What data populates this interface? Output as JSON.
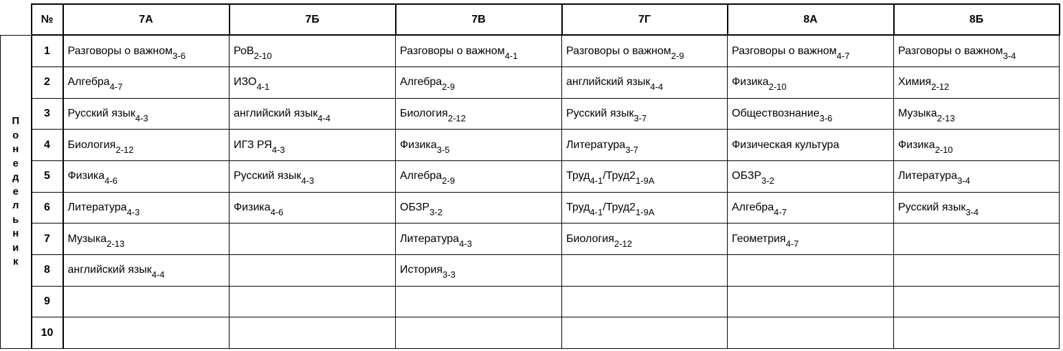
{
  "table": {
    "header": [
      "№",
      "7А",
      "7Б",
      "7В",
      "7Г",
      "8А",
      "8Б"
    ],
    "day": "Понедельник",
    "rows": [
      {
        "number": 1,
        "cells": [
          [
            {
              "text": "Разговоры о важном",
              "sub": "3-6"
            }
          ],
          [
            {
              "text": "РоВ",
              "sub": "2-10"
            }
          ],
          [
            {
              "text": "Разговоры о важном",
              "sub": "4-1"
            }
          ],
          [
            {
              "text": "Разговоры о важном",
              "sub": "2-9"
            }
          ],
          [
            {
              "text": "Разговоры о важном",
              "sub": "4-7"
            }
          ],
          [
            {
              "text": "Разговоры о важном",
              "sub": "3-4"
            }
          ]
        ]
      },
      {
        "number": 2,
        "cells": [
          [
            {
              "text": "Алгебра",
              "sub": "4-7"
            }
          ],
          [
            {
              "text": "ИЗО",
              "sub": "4-1"
            }
          ],
          [
            {
              "text": "Алгебра",
              "sub": "2-9"
            }
          ],
          [
            {
              "text": "английский язык",
              "sub": "4-4"
            }
          ],
          [
            {
              "text": "Физика",
              "sub": "2-10"
            }
          ],
          [
            {
              "text": "Химия",
              "sub": "2-12"
            }
          ]
        ]
      },
      {
        "number": 3,
        "cells": [
          [
            {
              "text": "Русский язык",
              "sub": "4-3"
            }
          ],
          [
            {
              "text": "английский язык",
              "sub": "4-4"
            }
          ],
          [
            {
              "text": "Биология",
              "sub": "2-12"
            }
          ],
          [
            {
              "text": "Русский язык",
              "sub": "3-7"
            }
          ],
          [
            {
              "text": "Обществознание",
              "sub": "3-6"
            }
          ],
          [
            {
              "text": "Музыка",
              "sub": "2-13"
            }
          ]
        ]
      },
      {
        "number": 4,
        "cells": [
          [
            {
              "text": "Биология",
              "sub": "2-12"
            }
          ],
          [
            {
              "text": "ИГЗ РЯ",
              "sub": "4-3"
            }
          ],
          [
            {
              "text": "Физика",
              "sub": "3-5"
            }
          ],
          [
            {
              "text": "Литература",
              "sub": "3-7"
            }
          ],
          [
            {
              "text": "Физическая культура"
            }
          ],
          [
            {
              "text": "Физика",
              "sub": "2-10"
            }
          ]
        ]
      },
      {
        "number": 5,
        "cells": [
          [
            {
              "text": "Физика",
              "sub": "4-6"
            }
          ],
          [
            {
              "text": "Русский язык",
              "sub": "4-3"
            }
          ],
          [
            {
              "text": "Алгебра",
              "sub": "2-9"
            }
          ],
          [
            {
              "text": "Труд",
              "sub": "4-1"
            },
            {
              "text": "/Труд2",
              "sub": "1-9А"
            }
          ],
          [
            {
              "text": "ОБЗР",
              "sub": "3-2"
            }
          ],
          [
            {
              "text": "Литература",
              "sub": "3-4"
            }
          ]
        ]
      },
      {
        "number": 6,
        "cells": [
          [
            {
              "text": "Литература",
              "sub": "4-3"
            }
          ],
          [
            {
              "text": "Физика",
              "sub": "4-6"
            }
          ],
          [
            {
              "text": "ОБЗР",
              "sub": "3-2"
            }
          ],
          [
            {
              "text": "Труд",
              "sub": "4-1"
            },
            {
              "text": "/Труд2",
              "sub": "1-9А"
            }
          ],
          [
            {
              "text": "Алгебра",
              "sub": "4-7"
            }
          ],
          [
            {
              "text": "Русский язык",
              "sub": "3-4"
            }
          ]
        ]
      },
      {
        "number": 7,
        "cells": [
          [
            {
              "text": "Музыка",
              "sub": "2-13"
            }
          ],
          [],
          [
            {
              "text": "Литература",
              "sub": "4-3"
            }
          ],
          [
            {
              "text": "Биология",
              "sub": "2-12"
            }
          ],
          [
            {
              "text": "Геометрия",
              "sub": "4-7"
            }
          ],
          []
        ]
      },
      {
        "number": 8,
        "cells": [
          [
            {
              "text": "английский язык",
              "sub": "4-4"
            }
          ],
          [],
          [
            {
              "text": "История",
              "sub": "3-3"
            }
          ],
          [],
          [],
          []
        ]
      },
      {
        "number": 9,
        "cells": [
          [],
          [],
          [],
          [],
          [],
          []
        ]
      },
      {
        "number": 10,
        "cells": [
          [],
          [],
          [],
          [],
          [],
          []
        ]
      }
    ]
  }
}
